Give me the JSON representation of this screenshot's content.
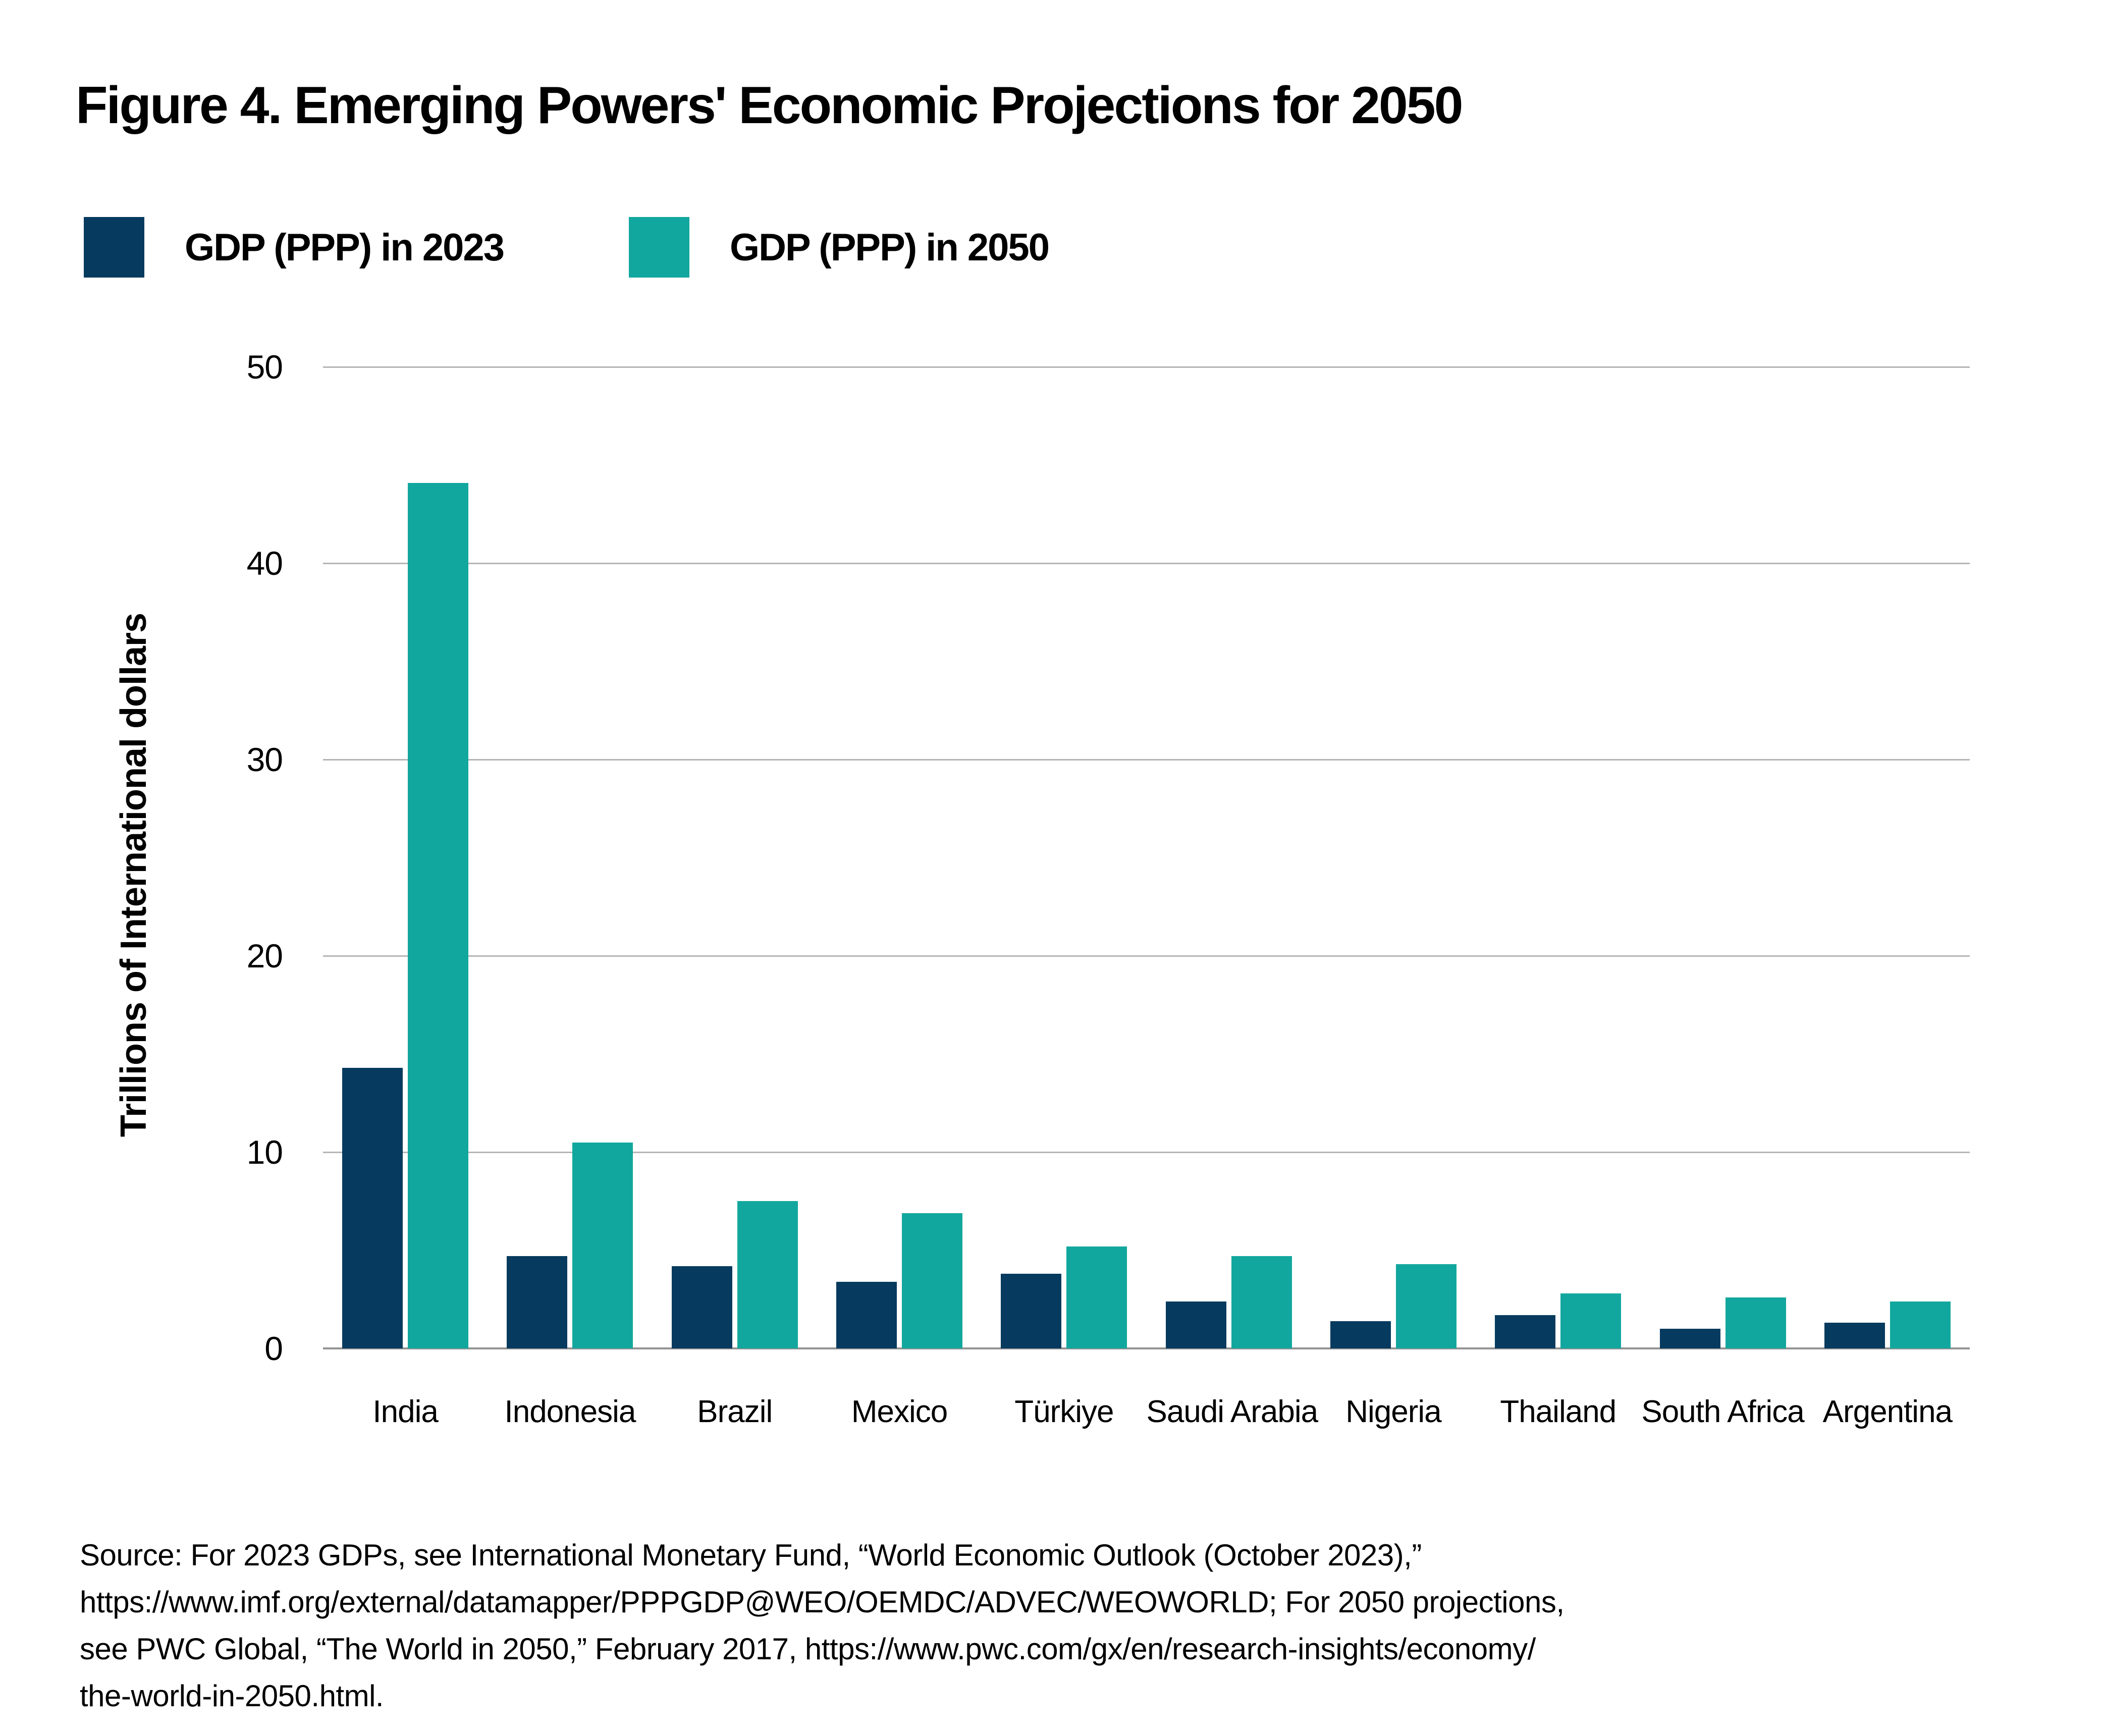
{
  "title": "Figure 4. Emerging Powers' Economic Projections for 2050",
  "legend": [
    {
      "label": "GDP (PPP) in 2023",
      "color": "#063a5e"
    },
    {
      "label": "GDP (PPP) in 2050",
      "color": "#12a79e"
    }
  ],
  "chart_data": {
    "type": "bar",
    "title": "Figure 4. Emerging Powers' Economic Projections for 2050",
    "categories": [
      "India",
      "Indonesia",
      "Brazil",
      "Mexico",
      "Türkiye",
      "Saudi Arabia",
      "Nigeria",
      "Thailand",
      "South Africa",
      "Argentina"
    ],
    "series": [
      {
        "name": "GDP (PPP) in 2023",
        "color": "#063a5e",
        "values": [
          14.3,
          4.7,
          4.2,
          3.4,
          3.8,
          2.4,
          1.4,
          1.7,
          1.0,
          1.3
        ]
      },
      {
        "name": "GDP (PPP) in 2050",
        "color": "#12a79e",
        "values": [
          44.1,
          10.5,
          7.5,
          6.9,
          5.2,
          4.7,
          4.3,
          2.8,
          2.6,
          2.4
        ]
      }
    ],
    "xlabel": "",
    "ylabel": "Trillions of International dollars",
    "ylim": [
      0,
      50
    ],
    "yticks": [
      0,
      10,
      20,
      30,
      40,
      50
    ],
    "grid": true,
    "legend_position": "top-left",
    "gridline_color": "#b5b5b5",
    "axis_line_color": "#949494"
  },
  "source": {
    "lines": [
      "Source: For 2023 GDPs, see International Monetary Fund, “World Economic Outlook (October 2023),”",
      "https://www.imf.org/external/datamapper/PPPGDP@WEO/OEMDC/ADVEC/WEOWORLD; For 2050 projections,",
      "see PWC Global, “The World in 2050,” February 2017, https://www.pwc.com/gx/en/research-insights/economy/",
      "the-world-in-2050.html."
    ]
  }
}
